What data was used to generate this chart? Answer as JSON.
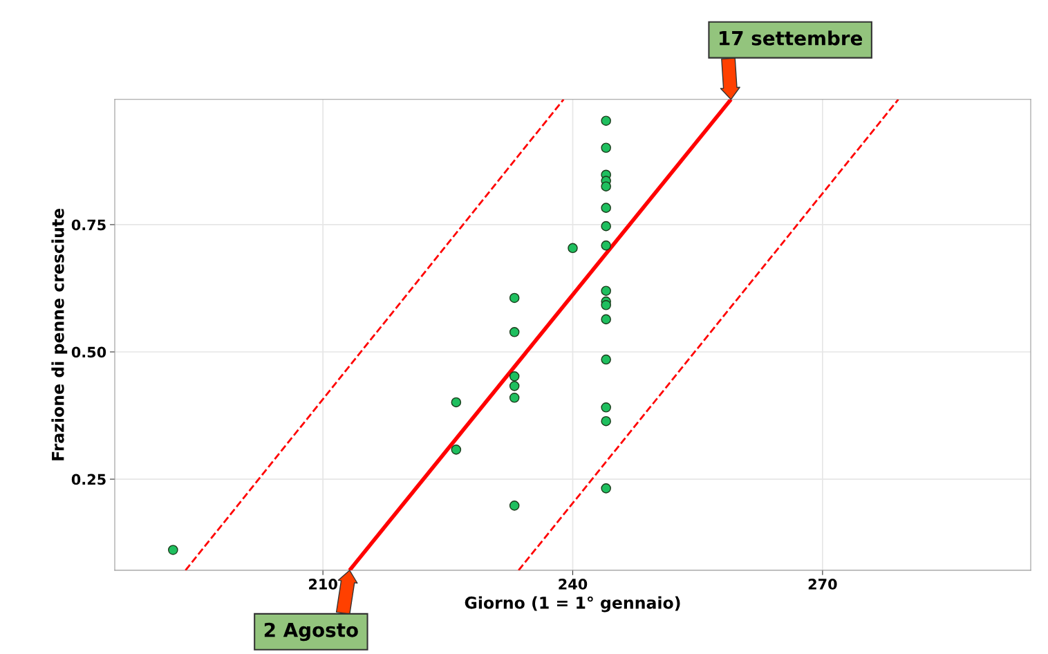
{
  "chart_data": {
    "type": "scatter",
    "xlabel": "Giorno (1 = 1° gennaio)",
    "ylabel": "Frazione di penne cresciute",
    "xlim": [
      185,
      295
    ],
    "ylim": [
      0.071,
      0.996
    ],
    "xticks": [
      210,
      240,
      270
    ],
    "yticks": [
      0.25,
      {
        "value": 0.5,
        "label": "0.50"
      },
      0.75
    ],
    "grid": true,
    "legend": false,
    "series": [
      {
        "type": "scatter",
        "color": "#1fbf5f",
        "marker": "circle",
        "x": [
          192,
          226,
          226,
          233,
          233,
          233,
          233,
          233,
          233,
          240,
          244,
          244,
          244,
          244,
          244,
          244,
          244,
          244,
          244,
          244,
          244,
          244,
          244,
          244,
          244,
          244
        ],
        "values": [
          0.111,
          0.401,
          0.308,
          0.606,
          0.539,
          0.452,
          0.433,
          0.41,
          0.198,
          0.704,
          0.954,
          0.901,
          0.848,
          0.836,
          0.825,
          0.783,
          0.747,
          0.709,
          0.62,
          0.599,
          0.592,
          0.564,
          0.485,
          0.391,
          0.364,
          0.232
        ]
      },
      {
        "type": "line",
        "color": "#ff0000",
        "line_style": "solid",
        "x": [
          213.2,
          259.0
        ],
        "values": [
          0.071,
          0.996
        ]
      },
      {
        "type": "line",
        "color": "#ff0000",
        "line_style": "dashed",
        "x": [
          193.5,
          238.9
        ],
        "values": [
          0.071,
          0.996
        ]
      },
      {
        "type": "line",
        "color": "#ff0000",
        "line_style": "dashed",
        "x": [
          233.5,
          279.1
        ],
        "values": [
          0.071,
          0.996
        ]
      }
    ],
    "annotations": [
      {
        "text": "17 settembre",
        "x": 259.0,
        "y": 0.996
      },
      {
        "text": "2 Agosto",
        "x": 213.2,
        "y": 0.071
      }
    ]
  }
}
